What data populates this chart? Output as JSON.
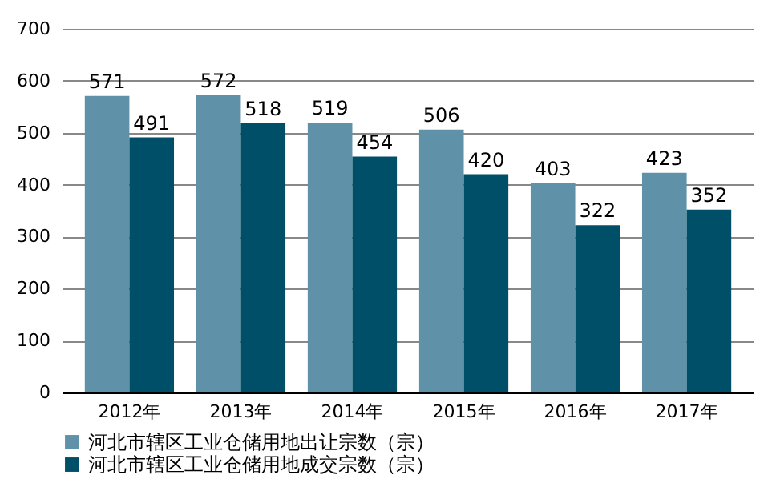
{
  "chart_data": {
    "type": "bar",
    "categories": [
      "2012年",
      "2013年",
      "2014年",
      "2015年",
      "2016年",
      "2017年"
    ],
    "series": [
      {
        "name": "河北市辖区工业仓储用地出让宗数（宗）",
        "color": "#5f92a9",
        "values": [
          571,
          572,
          519,
          506,
          403,
          423
        ]
      },
      {
        "name": "河北市辖区工业仓储用地成交宗数（宗）",
        "color": "#004f68",
        "values": [
          491,
          518,
          454,
          420,
          322,
          352
        ]
      }
    ],
    "ylim": [
      0,
      700
    ],
    "yticks": [
      0,
      100,
      200,
      300,
      400,
      500,
      600,
      700
    ],
    "grid": "y",
    "legend": "bottom",
    "data_labels": true
  }
}
